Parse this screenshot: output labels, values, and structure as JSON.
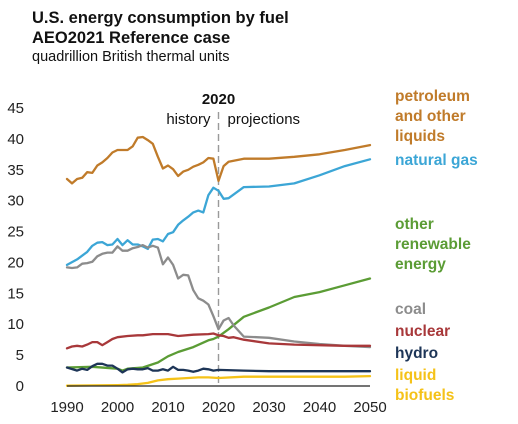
{
  "title_line1": "U.S. energy consumption by fuel",
  "title_line2": "AEO2021 Reference case",
  "subtitle": "quadrillion British thermal units",
  "divider": {
    "year_label": "2020",
    "left_label": "history",
    "right_label": "projections"
  },
  "colors": {
    "petroleum": "#c07b2a",
    "gas": "#3ca6d6",
    "renewable": "#5b9c35",
    "coal": "#8c8c8c",
    "nuclear": "#a8383a",
    "hydro": "#1d3557",
    "biofuels": "#f5c218"
  },
  "chart_data": {
    "type": "line",
    "title": "U.S. energy consumption by fuel AEO2021 Reference case",
    "ylabel": "quadrillion British thermal units",
    "xlim": [
      1990,
      2050
    ],
    "ylim": [
      0,
      45
    ],
    "x_ticks": [
      "1990",
      "2000",
      "2010",
      "2020",
      "2030",
      "2040",
      "2050"
    ],
    "y_ticks": [
      "0",
      "5",
      "10",
      "15",
      "20",
      "25",
      "30",
      "35",
      "40",
      "45"
    ],
    "grid": false,
    "legend_placement": "right",
    "series": [
      {
        "name": "petroleum\nand other\nliquids",
        "key": "petroleum",
        "x": [
          1990,
          1991,
          1992,
          1993,
          1994,
          1995,
          1996,
          1997,
          1998,
          1999,
          2000,
          2001,
          2002,
          2003,
          2004,
          2005,
          2006,
          2007,
          2008,
          2009,
          2010,
          2011,
          2012,
          2013,
          2014,
          2015,
          2016,
          2017,
          2018,
          2019,
          2020,
          2021,
          2022,
          2025,
          2030,
          2035,
          2040,
          2045,
          2050
        ],
        "y": [
          33.5,
          32.8,
          33.5,
          33.7,
          34.6,
          34.5,
          35.7,
          36.2,
          36.9,
          37.8,
          38.2,
          38.2,
          38.2,
          38.8,
          40.2,
          40.3,
          39.8,
          39.2,
          37.1,
          35.2,
          35.7,
          35.1,
          34.0,
          34.7,
          35.0,
          35.5,
          35.8,
          36.2,
          36.9,
          36.8,
          33.2,
          35.6,
          36.3,
          36.8,
          36.8,
          37.1,
          37.5,
          38.2,
          39.0
        ]
      },
      {
        "name": "natural gas",
        "key": "gas",
        "x": [
          1990,
          1992,
          1994,
          1995,
          1996,
          1997,
          1998,
          1999,
          2000,
          2001,
          2002,
          2003,
          2004,
          2005,
          2006,
          2007,
          2008,
          2009,
          2010,
          2011,
          2012,
          2013,
          2014,
          2015,
          2016,
          2017,
          2018,
          2019,
          2020,
          2021,
          2022,
          2025,
          2030,
          2035,
          2040,
          2045,
          2050
        ],
        "y": [
          19.6,
          20.5,
          21.7,
          22.7,
          23.2,
          23.3,
          22.8,
          22.9,
          23.8,
          22.8,
          23.6,
          22.9,
          22.9,
          22.6,
          22.2,
          23.7,
          23.8,
          23.4,
          24.6,
          24.9,
          26.1,
          26.8,
          27.4,
          28.1,
          28.4,
          28.1,
          30.9,
          32.1,
          31.6,
          30.3,
          30.4,
          32.2,
          32.3,
          32.8,
          34.1,
          35.6,
          36.7
        ]
      },
      {
        "name": "other\nrenewable\nenergy",
        "key": "renewable",
        "x": [
          1990,
          1995,
          2000,
          2001,
          2002,
          2005,
          2008,
          2010,
          2012,
          2015,
          2018,
          2019,
          2020,
          2022,
          2025,
          2030,
          2035,
          2040,
          2045,
          2050
        ],
        "y": [
          3.0,
          3.1,
          2.8,
          2.5,
          2.8,
          3.0,
          3.8,
          4.8,
          5.5,
          6.3,
          7.4,
          7.6,
          8.0,
          9.2,
          11.2,
          12.7,
          14.4,
          15.2,
          16.3,
          17.4
        ]
      },
      {
        "name": "coal",
        "key": "coal",
        "x": [
          1990,
          1991,
          1992,
          1993,
          1994,
          1995,
          1996,
          1997,
          1998,
          1999,
          2000,
          2001,
          2002,
          2003,
          2004,
          2005,
          2006,
          2007,
          2008,
          2009,
          2010,
          2011,
          2012,
          2013,
          2014,
          2015,
          2016,
          2017,
          2018,
          2019,
          2020,
          2021,
          2022,
          2023,
          2025,
          2030,
          2035,
          2040,
          2045,
          2050
        ],
        "y": [
          19.2,
          19.1,
          19.2,
          19.8,
          19.9,
          20.1,
          21.0,
          21.4,
          21.6,
          21.6,
          22.6,
          21.9,
          21.9,
          22.3,
          22.5,
          22.8,
          22.4,
          22.7,
          22.4,
          19.7,
          20.8,
          19.6,
          17.4,
          18.0,
          17.9,
          15.5,
          14.2,
          13.8,
          13.2,
          11.3,
          9.2,
          10.6,
          11.0,
          9.8,
          8.0,
          7.8,
          7.2,
          6.8,
          6.5,
          6.3
        ]
      },
      {
        "name": "nuclear",
        "key": "nuclear",
        "x": [
          1990,
          1991,
          1992,
          1993,
          1994,
          1995,
          1996,
          1997,
          1998,
          1999,
          2000,
          2002,
          2004,
          2005,
          2007,
          2008,
          2010,
          2012,
          2015,
          2018,
          2019,
          2020,
          2021,
          2022,
          2023,
          2025,
          2030,
          2035,
          2040,
          2045,
          2050
        ],
        "y": [
          6.1,
          6.4,
          6.5,
          6.4,
          6.7,
          7.1,
          7.1,
          6.6,
          7.1,
          7.6,
          7.9,
          8.1,
          8.2,
          8.2,
          8.4,
          8.4,
          8.4,
          8.1,
          8.3,
          8.4,
          8.5,
          8.2,
          8.1,
          7.8,
          7.9,
          7.5,
          6.9,
          6.7,
          6.6,
          6.5,
          6.5
        ]
      },
      {
        "name": "hydro",
        "key": "hydro",
        "x": [
          1990,
          1992,
          1993,
          1994,
          1995,
          1996,
          1997,
          1998,
          1999,
          2000,
          2001,
          2002,
          2003,
          2004,
          2005,
          2006,
          2007,
          2008,
          2009,
          2010,
          2011,
          2012,
          2013,
          2014,
          2015,
          2016,
          2017,
          2018,
          2019,
          2020,
          2025,
          2030,
          2035,
          2040,
          2045,
          2050
        ],
        "y": [
          3.0,
          2.5,
          2.8,
          2.6,
          3.2,
          3.6,
          3.6,
          3.3,
          3.3,
          2.8,
          2.2,
          2.7,
          2.8,
          2.7,
          2.7,
          2.9,
          2.5,
          2.5,
          2.7,
          2.5,
          3.1,
          2.6,
          2.6,
          2.5,
          2.3,
          2.5,
          2.8,
          2.7,
          2.5,
          2.6,
          2.5,
          2.4,
          2.4,
          2.4,
          2.4,
          2.4
        ]
      },
      {
        "name": "liquid\nbiofuels",
        "key": "biofuels",
        "x": [
          1990,
          1995,
          2000,
          2002,
          2004,
          2006,
          2008,
          2010,
          2012,
          2014,
          2016,
          2018,
          2020,
          2025,
          2030,
          2035,
          2040,
          2045,
          2050
        ],
        "y": [
          0.05,
          0.1,
          0.15,
          0.2,
          0.3,
          0.5,
          0.9,
          1.1,
          1.2,
          1.3,
          1.4,
          1.4,
          1.3,
          1.5,
          1.5,
          1.5,
          1.5,
          1.5,
          1.6
        ]
      }
    ]
  }
}
